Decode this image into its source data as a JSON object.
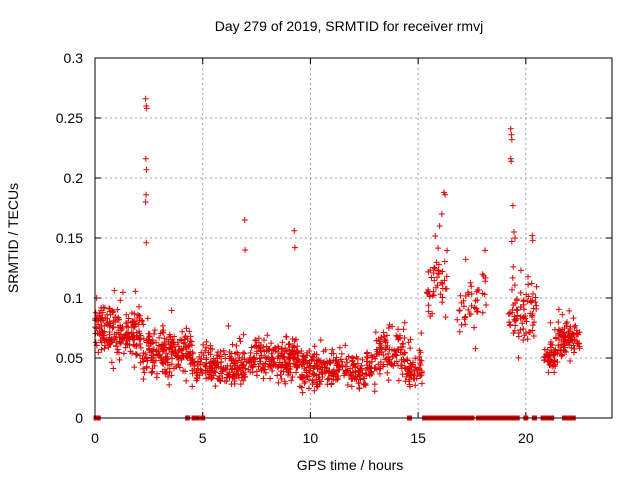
{
  "chart_data": {
    "type": "scatter",
    "title": "Day 279 of 2019, SRMTID for receiver rmvj",
    "xlabel": "GPS time / hours",
    "ylabel": "SRMTID / TECUs",
    "xlim": [
      0,
      24
    ],
    "ylim": [
      0,
      0.3
    ],
    "xticks": [
      0,
      5,
      10,
      15,
      20
    ],
    "yticks": [
      0,
      0.05,
      0.1,
      0.15,
      0.2,
      0.25,
      0.3
    ],
    "xtick_labels": [
      "0",
      "5",
      "10",
      "15",
      "20"
    ],
    "ytick_labels": [
      "0",
      "0.05",
      "0.1",
      "0.15",
      "0.2",
      "0.25",
      "0.3"
    ],
    "grid": true,
    "legend": "none",
    "marker": "+",
    "color": "#e00000",
    "clusters": [
      {
        "x_range": [
          0.0,
          0.6
        ],
        "y_center": 0.075,
        "y_spread": 0.02,
        "count": 60
      },
      {
        "x_range": [
          0.6,
          2.2
        ],
        "y_center": 0.07,
        "y_spread": 0.022,
        "count": 150
      },
      {
        "x_range": [
          2.2,
          4.5
        ],
        "y_center": 0.055,
        "y_spread": 0.02,
        "count": 200
      },
      {
        "x_range": [
          4.5,
          7.0
        ],
        "y_center": 0.042,
        "y_spread": 0.016,
        "count": 200
      },
      {
        "x_range": [
          7.0,
          9.5
        ],
        "y_center": 0.048,
        "y_spread": 0.018,
        "count": 200
      },
      {
        "x_range": [
          9.5,
          13.0
        ],
        "y_center": 0.04,
        "y_spread": 0.016,
        "count": 260
      },
      {
        "x_range": [
          13.0,
          14.4
        ],
        "y_center": 0.055,
        "y_spread": 0.02,
        "count": 100
      },
      {
        "x_range": [
          14.4,
          15.2
        ],
        "y_center": 0.04,
        "y_spread": 0.014,
        "count": 60
      },
      {
        "x_range": [
          15.4,
          16.4
        ],
        "y_center": 0.11,
        "y_spread": 0.03,
        "count": 45
      },
      {
        "x_range": [
          16.8,
          18.2
        ],
        "y_center": 0.1,
        "y_spread": 0.03,
        "count": 45
      },
      {
        "x_range": [
          19.2,
          20.5
        ],
        "y_center": 0.09,
        "y_spread": 0.03,
        "count": 80
      },
      {
        "x_range": [
          20.8,
          21.5
        ],
        "y_center": 0.05,
        "y_spread": 0.015,
        "count": 50
      },
      {
        "x_range": [
          21.5,
          22.5
        ],
        "y_center": 0.065,
        "y_spread": 0.015,
        "count": 90
      }
    ],
    "outliers": [
      {
        "x": 2.35,
        "y": 0.266
      },
      {
        "x": 2.38,
        "y": 0.26
      },
      {
        "x": 2.4,
        "y": 0.258
      },
      {
        "x": 2.36,
        "y": 0.216
      },
      {
        "x": 2.39,
        "y": 0.207
      },
      {
        "x": 2.37,
        "y": 0.186
      },
      {
        "x": 2.35,
        "y": 0.18
      },
      {
        "x": 2.38,
        "y": 0.146
      },
      {
        "x": 6.95,
        "y": 0.165
      },
      {
        "x": 6.97,
        "y": 0.14
      },
      {
        "x": 9.25,
        "y": 0.156
      },
      {
        "x": 9.28,
        "y": 0.142
      },
      {
        "x": 16.2,
        "y": 0.188
      },
      {
        "x": 16.25,
        "y": 0.186
      },
      {
        "x": 16.1,
        "y": 0.17
      },
      {
        "x": 16.0,
        "y": 0.16
      },
      {
        "x": 19.3,
        "y": 0.241
      },
      {
        "x": 19.33,
        "y": 0.236
      },
      {
        "x": 19.35,
        "y": 0.232
      },
      {
        "x": 19.3,
        "y": 0.216
      },
      {
        "x": 19.32,
        "y": 0.214
      },
      {
        "x": 19.4,
        "y": 0.177
      },
      {
        "x": 19.45,
        "y": 0.155
      },
      {
        "x": 19.5,
        "y": 0.15
      },
      {
        "x": 20.3,
        "y": 0.152
      },
      {
        "x": 20.32,
        "y": 0.148
      }
    ],
    "zero_markers_x": [
      0.05,
      0.15,
      4.3,
      4.6,
      4.75,
      5.0,
      14.6,
      15.3,
      15.45,
      15.6,
      15.75,
      15.9,
      16.05,
      16.2,
      16.35,
      16.5,
      16.7,
      16.9,
      17.1,
      17.3,
      17.5,
      17.8,
      18.0,
      18.2,
      18.4,
      18.6,
      18.8,
      19.0,
      19.2,
      19.4,
      19.6,
      20.0,
      20.4,
      20.8,
      21.0,
      21.2,
      21.8,
      22.0,
      22.2
    ]
  }
}
